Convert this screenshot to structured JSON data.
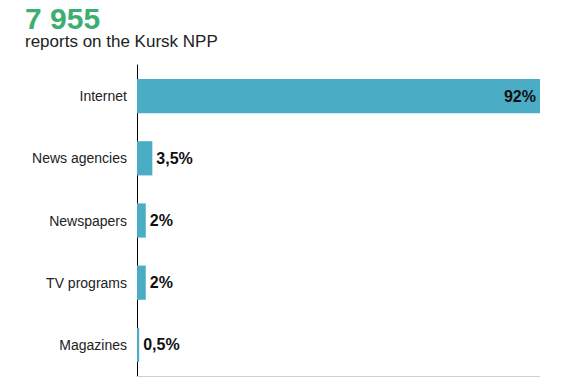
{
  "chart_data": {
    "type": "bar",
    "title": "7 955",
    "subtitle": "reports on the Kursk NPP",
    "orientation": "horizontal",
    "categories": [
      "Internet",
      "News agencies",
      "Newspapers",
      "TV programs",
      "Magazines"
    ],
    "values": [
      92,
      3.5,
      2,
      2,
      0.5
    ],
    "value_labels": [
      "92%",
      "3,5%",
      "2%",
      "2%",
      "0,5%"
    ],
    "color": "#4bacc6",
    "xlim": [
      0,
      92
    ],
    "data_labels": true,
    "tick_labels": "y",
    "grid": false
  }
}
